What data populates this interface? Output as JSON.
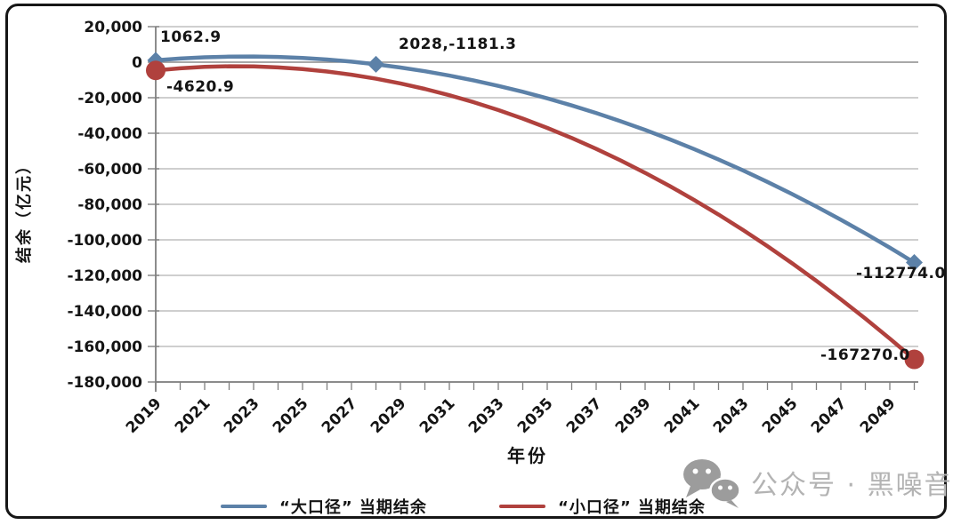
{
  "colors": {
    "blue_series": "#5C81A8",
    "red_series": "#B0413D",
    "gridline": "#bfbfbf",
    "zero_line": "#8c8c8c",
    "axis": "#7f7f7f",
    "text": "#141414",
    "watermark_gray": "#b3b3b3",
    "frame_border": "#161616"
  },
  "chart_data": {
    "type": "line",
    "title": "",
    "xlabel": "年份",
    "ylabel": "结余（亿元）",
    "xlim": [
      2019,
      2050
    ],
    "ylim": [
      -180000,
      20000
    ],
    "grid": true,
    "legend_position": "bottom",
    "x": [
      2019,
      2020,
      2021,
      2022,
      2023,
      2024,
      2025,
      2026,
      2027,
      2028,
      2029,
      2030,
      2031,
      2032,
      2033,
      2034,
      2035,
      2036,
      2037,
      2038,
      2039,
      2040,
      2041,
      2042,
      2043,
      2044,
      2045,
      2046,
      2047,
      2048,
      2049,
      2050
    ],
    "x_tick_labels": [
      "2019",
      "2021",
      "2023",
      "2025",
      "2027",
      "2029",
      "2031",
      "2033",
      "2035",
      "2037",
      "2039",
      "2041",
      "2043",
      "2045",
      "2047",
      "2049"
    ],
    "y_ticks": [
      {
        "value": 20000,
        "label": "20,000"
      },
      {
        "value": 0,
        "label": "0"
      },
      {
        "value": -20000,
        "label": "-20,000"
      },
      {
        "value": -40000,
        "label": "-40,000"
      },
      {
        "value": -60000,
        "label": "-60,000"
      },
      {
        "value": -80000,
        "label": "-80,000"
      },
      {
        "value": -100000,
        "label": "-100,000"
      },
      {
        "value": -120000,
        "label": "-120,000"
      },
      {
        "value": -140000,
        "label": "-140,000"
      },
      {
        "value": -160000,
        "label": "-160,000"
      },
      {
        "value": -180000,
        "label": "-180,000"
      }
    ],
    "series": [
      {
        "name": "“大口径” 当期结余",
        "color": "#5C81A8",
        "marker": "diamond",
        "marker_years": [
          2019,
          2028,
          2050
        ],
        "values": [
          1062.9,
          2058,
          2742,
          3115,
          3177,
          2928,
          2367,
          1496,
          313,
          -1181.3,
          -2986,
          -5102,
          -7530,
          -10268,
          -13318,
          -16679,
          -20351,
          -24334,
          -28629,
          -33234,
          -38151,
          -43379,
          -48918,
          -54768,
          -60930,
          -67402,
          -74186,
          -81281,
          -88687,
          -96404,
          -104432,
          -112774.0
        ]
      },
      {
        "name": "“小口径” 当期结余",
        "color": "#B0413D",
        "marker": "circle",
        "marker_years": [
          2019,
          2050
        ],
        "values": [
          -4620.9,
          -3421,
          -2651,
          -2311,
          -2400,
          -2920,
          -3869,
          -5248,
          -7057,
          -9295,
          -11964,
          -15062,
          -18590,
          -22548,
          -26936,
          -31753,
          -37000,
          -42677,
          -48784,
          -55321,
          -62287,
          -69683,
          -77509,
          -85765,
          -94451,
          -103566,
          -113111,
          -123086,
          -133491,
          -144326,
          -155590,
          -167270.0
        ]
      }
    ],
    "annotations": [
      {
        "text": "1062.9",
        "series": "大口径",
        "year": 2019
      },
      {
        "text": "-4620.9",
        "series": "小口径",
        "year": 2019
      },
      {
        "text": "2028,-1181.3",
        "series": "大口径",
        "year": 2028
      },
      {
        "text": "-112774.0",
        "series": "大口径",
        "year": 2050
      },
      {
        "text": "-167270.0",
        "series": "小口径",
        "year": 2050
      }
    ]
  },
  "watermark": {
    "icon": "wechat-icon",
    "text": "公众号 · 黑噪音"
  }
}
